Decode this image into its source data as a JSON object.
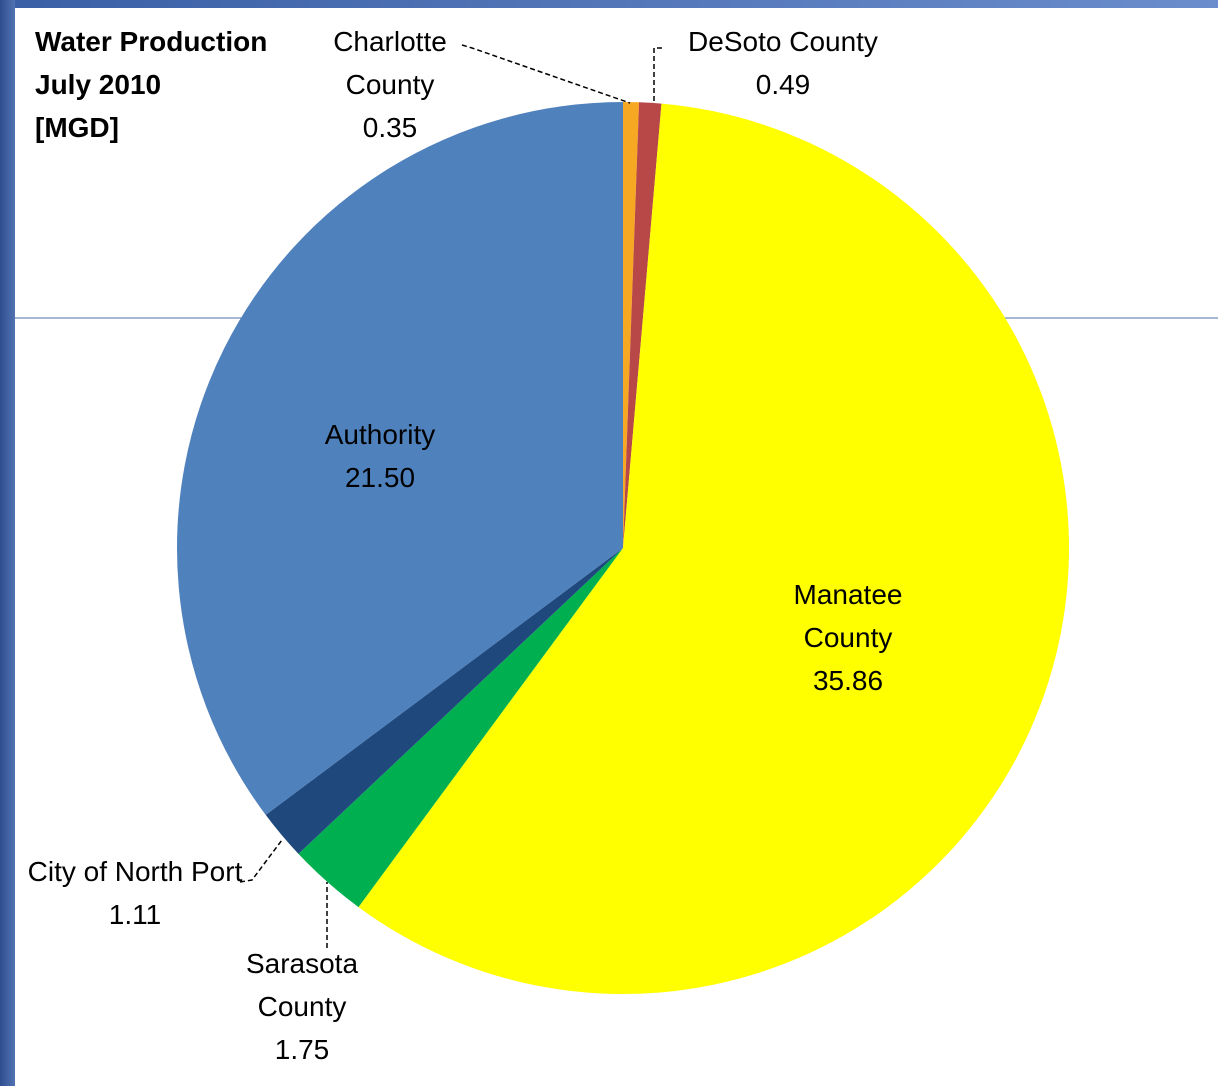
{
  "chart_data": {
    "type": "pie",
    "title": "Water Production July 2010",
    "unit": "[MGD]",
    "categories": [
      "Charlotte County",
      "DeSoto County",
      "Manatee County",
      "Sarasota County",
      "City of North Port",
      "Authority"
    ],
    "values": [
      0.35,
      0.49,
      35.86,
      1.75,
      1.11,
      21.5
    ],
    "value_labels": [
      "0.35",
      "0.49",
      "35.86",
      "1.75",
      "1.11",
      "21.50"
    ],
    "colors": [
      "#f7a823",
      "#b84747",
      "#ffff00",
      "#00b050",
      "#1f497d",
      "#4f81bd"
    ]
  }
}
